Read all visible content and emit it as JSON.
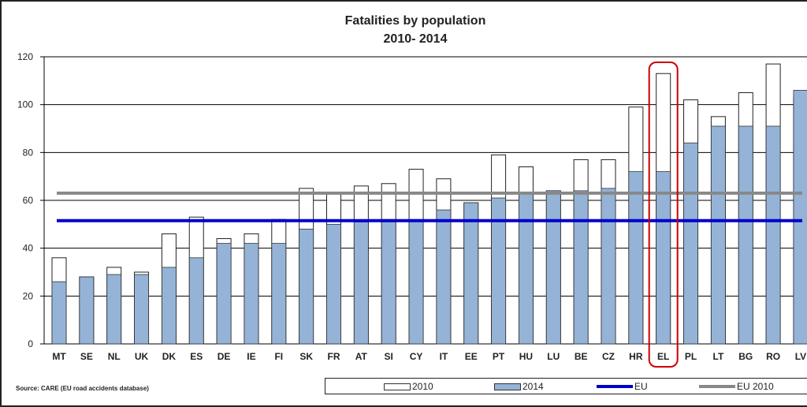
{
  "chart_data": {
    "type": "bar",
    "title": "Fatalities by population",
    "subtitle": "2010- 2014",
    "categories": [
      "MT",
      "SE",
      "NL",
      "UK",
      "DK",
      "ES",
      "DE",
      "IE",
      "FI",
      "SK",
      "FR",
      "AT",
      "SI",
      "CY",
      "IT",
      "EE",
      "PT",
      "HU",
      "LU",
      "BE",
      "CZ",
      "HR",
      "EL",
      "PL",
      "LT",
      "BG",
      "RO",
      "LV"
    ],
    "series": [
      {
        "name": "2010",
        "color": "#ffffff",
        "values": [
          36,
          28,
          32,
          30,
          46,
          53,
          44,
          46,
          52,
          65,
          63,
          66,
          67,
          73,
          69,
          59,
          79,
          74,
          64,
          77,
          77,
          99,
          113,
          102,
          95,
          105,
          117,
          103
        ]
      },
      {
        "name": "2014",
        "color": "#95b3d7",
        "values": [
          26,
          28,
          29,
          29,
          32,
          36,
          42,
          42,
          42,
          48,
          50,
          51,
          52,
          52,
          56,
          59,
          61,
          63,
          64,
          64,
          65,
          72,
          72,
          84,
          91,
          91,
          91,
          106
        ]
      }
    ],
    "reference_lines": [
      {
        "name": "EU",
        "value": 51.5,
        "color": "#0000cc"
      },
      {
        "name": "EU 2010",
        "value": 63,
        "color": "#888888"
      }
    ],
    "ylim": [
      0,
      120
    ],
    "yticks": [
      0,
      20,
      40,
      60,
      80,
      100,
      120
    ],
    "highlighted_category": "EL",
    "highlight_color": "#cc0000",
    "grid": true,
    "legend_position": "bottom"
  },
  "source": "Source: CARE (EU road accidents database)",
  "legend": {
    "label_2010": "2010",
    "label_2014": "2014",
    "label_eu": "EU",
    "label_eu2010": "EU 2010"
  }
}
